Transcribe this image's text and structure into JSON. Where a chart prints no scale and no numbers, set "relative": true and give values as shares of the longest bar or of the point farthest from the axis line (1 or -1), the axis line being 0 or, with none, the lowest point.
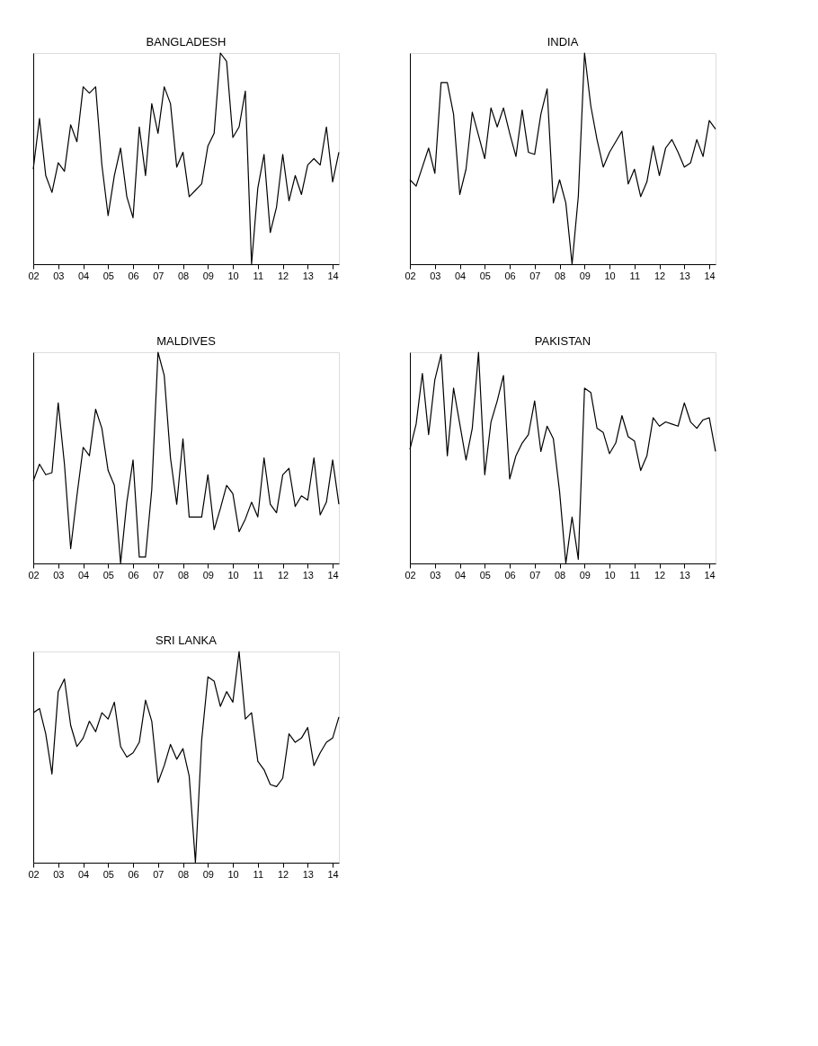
{
  "chart_data": [
    {
      "type": "line",
      "title": "BANGLADESH",
      "relative": true,
      "tick_labels": "x",
      "xlim": [
        2002,
        2014.25
      ],
      "xticks": [
        {
          "value": 2002,
          "label": "02"
        },
        {
          "value": 2003,
          "label": "03"
        },
        {
          "value": 2004,
          "label": "04"
        },
        {
          "value": 2005,
          "label": "05"
        },
        {
          "value": 2006,
          "label": "06"
        },
        {
          "value": 2007,
          "label": "07"
        },
        {
          "value": 2008,
          "label": "08"
        },
        {
          "value": 2009,
          "label": "09"
        },
        {
          "value": 2010,
          "label": "10"
        },
        {
          "value": 2011,
          "label": "11"
        },
        {
          "value": 2012,
          "label": "12"
        },
        {
          "value": 2013,
          "label": "13"
        },
        {
          "value": 2014,
          "label": "14"
        }
      ],
      "x": [
        2002,
        2002.25,
        2002.5,
        2002.75,
        2003,
        2003.25,
        2003.5,
        2003.75,
        2004,
        2004.25,
        2004.5,
        2004.75,
        2005,
        2005.25,
        2005.5,
        2005.75,
        2006,
        2006.25,
        2006.5,
        2006.75,
        2007,
        2007.25,
        2007.5,
        2007.75,
        2008,
        2008.25,
        2008.5,
        2008.75,
        2009,
        2009.25,
        2009.5,
        2009.75,
        2010,
        2010.25,
        2010.5,
        2010.75,
        2011,
        2011.25,
        2011.5,
        2011.75,
        2012,
        2012.25,
        2012.5,
        2012.75,
        2013,
        2013.25,
        2013.5,
        2013.75,
        2014,
        2014.25
      ],
      "series": [
        {
          "color": "#000000",
          "values": [
            0.45,
            0.69,
            0.42,
            0.34,
            0.48,
            0.44,
            0.66,
            0.58,
            0.84,
            0.81,
            0.84,
            0.47,
            0.23,
            0.42,
            0.55,
            0.32,
            0.22,
            0.65,
            0.42,
            0.76,
            0.62,
            0.84,
            0.76,
            0.46,
            0.53,
            0.32,
            0.35,
            0.38,
            0.56,
            0.62,
            1,
            0.96,
            0.6,
            0.65,
            0.82,
            0,
            0.36,
            0.52,
            0.15,
            0.27,
            0.52,
            0.3,
            0.42,
            0.33,
            0.47,
            0.5,
            0.47,
            0.65,
            0.39,
            0.53
          ]
        }
      ]
    },
    {
      "type": "line",
      "title": "INDIA",
      "relative": true,
      "tick_labels": "x",
      "xlim": [
        2002,
        2014.25
      ],
      "xticks": [
        {
          "value": 2002,
          "label": "02"
        },
        {
          "value": 2003,
          "label": "03"
        },
        {
          "value": 2004,
          "label": "04"
        },
        {
          "value": 2005,
          "label": "05"
        },
        {
          "value": 2006,
          "label": "06"
        },
        {
          "value": 2007,
          "label": "07"
        },
        {
          "value": 2008,
          "label": "08"
        },
        {
          "value": 2009,
          "label": "09"
        },
        {
          "value": 2010,
          "label": "10"
        },
        {
          "value": 2011,
          "label": "11"
        },
        {
          "value": 2012,
          "label": "12"
        },
        {
          "value": 2013,
          "label": "13"
        },
        {
          "value": 2014,
          "label": "14"
        }
      ],
      "x": [
        2002,
        2002.25,
        2002.5,
        2002.75,
        2003,
        2003.25,
        2003.5,
        2003.75,
        2004,
        2004.25,
        2004.5,
        2004.75,
        2005,
        2005.25,
        2005.5,
        2005.75,
        2006,
        2006.25,
        2006.5,
        2006.75,
        2007,
        2007.25,
        2007.5,
        2007.75,
        2008,
        2008.25,
        2008.5,
        2008.75,
        2009,
        2009.25,
        2009.5,
        2009.75,
        2010,
        2010.25,
        2010.5,
        2010.75,
        2011,
        2011.25,
        2011.5,
        2011.75,
        2012,
        2012.25,
        2012.5,
        2012.75,
        2013,
        2013.25,
        2013.5,
        2013.75,
        2014,
        2014.25
      ],
      "series": [
        {
          "color": "#000000",
          "values": [
            0.4,
            0.37,
            0.46,
            0.55,
            0.43,
            0.86,
            0.86,
            0.71,
            0.33,
            0.45,
            0.72,
            0.61,
            0.5,
            0.74,
            0.65,
            0.74,
            0.62,
            0.51,
            0.73,
            0.53,
            0.52,
            0.71,
            0.83,
            0.29,
            0.4,
            0.29,
            0,
            0.32,
            1,
            0.75,
            0.59,
            0.46,
            0.53,
            0.58,
            0.63,
            0.38,
            0.45,
            0.32,
            0.39,
            0.56,
            0.42,
            0.55,
            0.59,
            0.53,
            0.46,
            0.48,
            0.59,
            0.51,
            0.68,
            0.64
          ]
        }
      ]
    },
    {
      "type": "line",
      "title": "MALDIVES",
      "relative": true,
      "tick_labels": "x",
      "xlim": [
        2002,
        2014.25
      ],
      "xticks": [
        {
          "value": 2002,
          "label": "02"
        },
        {
          "value": 2003,
          "label": "03"
        },
        {
          "value": 2004,
          "label": "04"
        },
        {
          "value": 2005,
          "label": "05"
        },
        {
          "value": 2006,
          "label": "06"
        },
        {
          "value": 2007,
          "label": "07"
        },
        {
          "value": 2008,
          "label": "08"
        },
        {
          "value": 2009,
          "label": "09"
        },
        {
          "value": 2010,
          "label": "10"
        },
        {
          "value": 2011,
          "label": "11"
        },
        {
          "value": 2012,
          "label": "12"
        },
        {
          "value": 2013,
          "label": "13"
        },
        {
          "value": 2014,
          "label": "14"
        }
      ],
      "x": [
        2002,
        2002.25,
        2002.5,
        2002.75,
        2003,
        2003.25,
        2003.5,
        2003.75,
        2004,
        2004.25,
        2004.5,
        2004.75,
        2005,
        2005.25,
        2005.5,
        2005.75,
        2006,
        2006.25,
        2006.5,
        2006.75,
        2007,
        2007.25,
        2007.5,
        2007.75,
        2008,
        2008.25,
        2008.5,
        2008.75,
        2009,
        2009.25,
        2009.5,
        2009.75,
        2010,
        2010.25,
        2010.5,
        2010.75,
        2011,
        2011.25,
        2011.5,
        2011.75,
        2012,
        2012.25,
        2012.5,
        2012.75,
        2013,
        2013.25,
        2013.5,
        2013.75,
        2014,
        2014.25
      ],
      "series": [
        {
          "color": "#000000",
          "values": [
            0.39,
            0.47,
            0.42,
            0.43,
            0.76,
            0.47,
            0.07,
            0.32,
            0.55,
            0.51,
            0.73,
            0.64,
            0.44,
            0.37,
            0,
            0.29,
            0.49,
            0.03,
            0.03,
            0.35,
            1,
            0.89,
            0.5,
            0.28,
            0.59,
            0.22,
            0.22,
            0.22,
            0.42,
            0.16,
            0.26,
            0.37,
            0.33,
            0.15,
            0.21,
            0.29,
            0.22,
            0.5,
            0.28,
            0.24,
            0.42,
            0.45,
            0.27,
            0.32,
            0.3,
            0.5,
            0.23,
            0.29,
            0.49,
            0.28
          ]
        }
      ]
    },
    {
      "type": "line",
      "title": "PAKISTAN",
      "relative": true,
      "tick_labels": "x",
      "xlim": [
        2002,
        2014.25
      ],
      "xticks": [
        {
          "value": 2002,
          "label": "02"
        },
        {
          "value": 2003,
          "label": "03"
        },
        {
          "value": 2004,
          "label": "04"
        },
        {
          "value": 2005,
          "label": "05"
        },
        {
          "value": 2006,
          "label": "06"
        },
        {
          "value": 2007,
          "label": "07"
        },
        {
          "value": 2008,
          "label": "08"
        },
        {
          "value": 2009,
          "label": "09"
        },
        {
          "value": 2010,
          "label": "10"
        },
        {
          "value": 2011,
          "label": "11"
        },
        {
          "value": 2012,
          "label": "12"
        },
        {
          "value": 2013,
          "label": "13"
        },
        {
          "value": 2014,
          "label": "14"
        }
      ],
      "x": [
        2002,
        2002.25,
        2002.5,
        2002.75,
        2003,
        2003.25,
        2003.5,
        2003.75,
        2004,
        2004.25,
        2004.5,
        2004.75,
        2005,
        2005.25,
        2005.5,
        2005.75,
        2006,
        2006.25,
        2006.5,
        2006.75,
        2007,
        2007.25,
        2007.5,
        2007.75,
        2008,
        2008.25,
        2008.5,
        2008.75,
        2009,
        2009.25,
        2009.5,
        2009.75,
        2010,
        2010.25,
        2010.5,
        2010.75,
        2011,
        2011.25,
        2011.5,
        2011.75,
        2012,
        2012.25,
        2012.5,
        2012.75,
        2013,
        2013.25,
        2013.5,
        2013.75,
        2014,
        2014.25
      ],
      "series": [
        {
          "color": "#000000",
          "values": [
            0.54,
            0.66,
            0.9,
            0.61,
            0.87,
            0.99,
            0.51,
            0.83,
            0.66,
            0.49,
            0.64,
            1,
            0.42,
            0.67,
            0.77,
            0.89,
            0.4,
            0.51,
            0.57,
            0.61,
            0.77,
            0.53,
            0.65,
            0.59,
            0.34,
            0,
            0.22,
            0.02,
            0.83,
            0.81,
            0.64,
            0.62,
            0.52,
            0.57,
            0.7,
            0.6,
            0.58,
            0.44,
            0.51,
            0.69,
            0.65,
            0.67,
            0.66,
            0.65,
            0.76,
            0.67,
            0.64,
            0.68,
            0.69,
            0.53
          ]
        }
      ]
    },
    {
      "type": "line",
      "title": "SRI LANKA",
      "relative": true,
      "tick_labels": "x",
      "xlim": [
        2002,
        2014.25
      ],
      "xticks": [
        {
          "value": 2002,
          "label": "02"
        },
        {
          "value": 2003,
          "label": "03"
        },
        {
          "value": 2004,
          "label": "04"
        },
        {
          "value": 2005,
          "label": "05"
        },
        {
          "value": 2006,
          "label": "06"
        },
        {
          "value": 2007,
          "label": "07"
        },
        {
          "value": 2008,
          "label": "08"
        },
        {
          "value": 2009,
          "label": "09"
        },
        {
          "value": 2010,
          "label": "10"
        },
        {
          "value": 2011,
          "label": "11"
        },
        {
          "value": 2012,
          "label": "12"
        },
        {
          "value": 2013,
          "label": "13"
        },
        {
          "value": 2014,
          "label": "14"
        }
      ],
      "x": [
        2002,
        2002.25,
        2002.5,
        2002.75,
        2003,
        2003.25,
        2003.5,
        2003.75,
        2004,
        2004.25,
        2004.5,
        2004.75,
        2005,
        2005.25,
        2005.5,
        2005.75,
        2006,
        2006.25,
        2006.5,
        2006.75,
        2007,
        2007.25,
        2007.5,
        2007.75,
        2008,
        2008.25,
        2008.5,
        2008.75,
        2009,
        2009.25,
        2009.5,
        2009.75,
        2010,
        2010.25,
        2010.5,
        2010.75,
        2011,
        2011.25,
        2011.5,
        2011.75,
        2012,
        2012.25,
        2012.5,
        2012.75,
        2013,
        2013.25,
        2013.5,
        2013.75,
        2014,
        2014.25
      ],
      "series": [
        {
          "color": "#000000",
          "values": [
            0.71,
            0.73,
            0.61,
            0.42,
            0.81,
            0.87,
            0.65,
            0.55,
            0.59,
            0.67,
            0.62,
            0.71,
            0.68,
            0.76,
            0.55,
            0.5,
            0.52,
            0.57,
            0.77,
            0.67,
            0.38,
            0.46,
            0.56,
            0.49,
            0.54,
            0.41,
            0,
            0.58,
            0.88,
            0.86,
            0.74,
            0.81,
            0.76,
            1,
            0.68,
            0.71,
            0.48,
            0.44,
            0.37,
            0.36,
            0.4,
            0.61,
            0.57,
            0.59,
            0.64,
            0.46,
            0.52,
            0.57,
            0.59,
            0.69
          ]
        }
      ]
    }
  ]
}
